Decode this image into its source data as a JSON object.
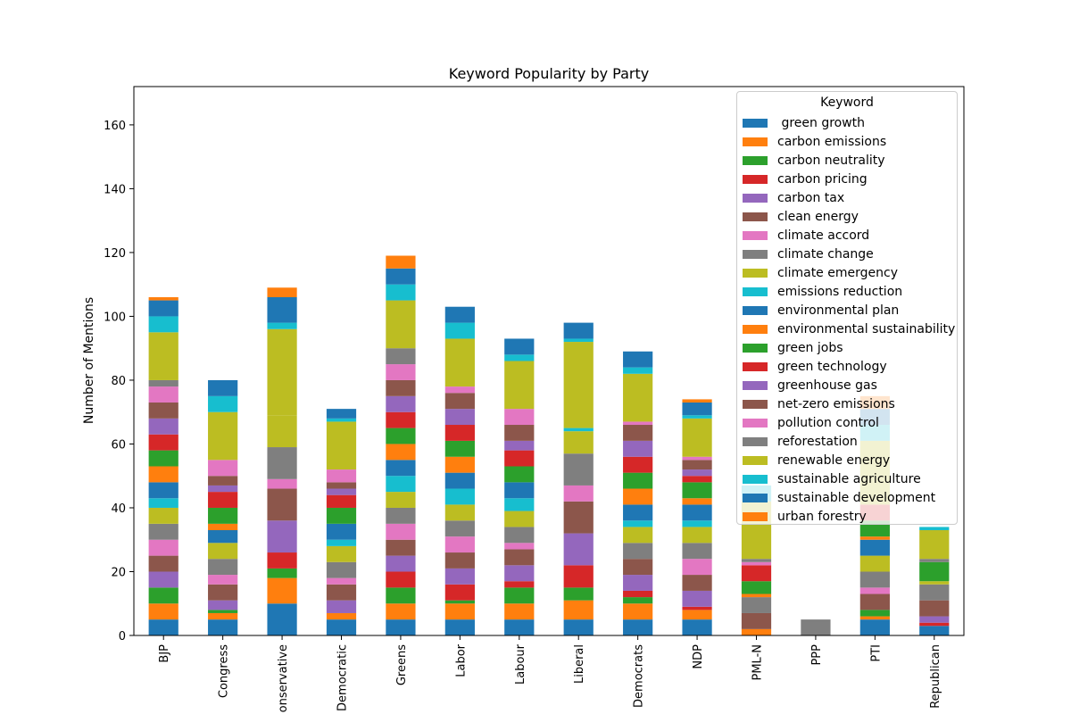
{
  "chart_data": {
    "type": "bar",
    "stacked": true,
    "title": "Keyword Popularity by Party",
    "xlabel": "",
    "ylabel": "Number of Mentions",
    "ylim": [
      0,
      172
    ],
    "yticks": [
      0,
      20,
      40,
      60,
      80,
      100,
      120,
      140,
      160
    ],
    "categories": [
      "BJP",
      "Congress",
      "Conservative",
      "Democratic",
      "Greens",
      "Labor",
      "Labour",
      "Liberal",
      "Liberal Democrats",
      "NDP",
      "PML-N",
      "PPP",
      "PTI",
      "Republican"
    ],
    "category_labels": [
      "BJP",
      "Congress",
      "onservative",
      "Democratic",
      "Greens",
      "Labor",
      "Labour",
      "Liberal",
      "Democrats",
      "NDP",
      "PML-N",
      "PPP",
      "PTI",
      "Republican"
    ],
    "legend_title": "Keyword",
    "legend_position": "upper right",
    "grid": false,
    "series": [
      {
        "name": " green growth",
        "color": "#1f77b4",
        "values": [
          5,
          5,
          10,
          5,
          5,
          5,
          5,
          5,
          5,
          5,
          0,
          0,
          5,
          3
        ]
      },
      {
        "name": "carbon emissions",
        "color": "#ff7f0e",
        "values": [
          5,
          2,
          8,
          2,
          5,
          5,
          5,
          6,
          5,
          3,
          2,
          0,
          1,
          0
        ]
      },
      {
        "name": "carbon neutrality",
        "color": "#2ca02c",
        "values": [
          5,
          1,
          3,
          0,
          5,
          1,
          5,
          4,
          2,
          0,
          0,
          0,
          2,
          0
        ]
      },
      {
        "name": "carbon pricing",
        "color": "#d62728",
        "values": [
          0,
          0,
          5,
          0,
          5,
          5,
          2,
          7,
          2,
          1,
          0,
          0,
          0,
          1
        ]
      },
      {
        "name": "carbon tax",
        "color": "#9467bd",
        "values": [
          5,
          3,
          10,
          4,
          5,
          5,
          5,
          10,
          5,
          5,
          0,
          0,
          0,
          2
        ]
      },
      {
        "name": "clean energy",
        "color": "#8c564b",
        "values": [
          5,
          5,
          10,
          5,
          5,
          5,
          5,
          10,
          5,
          5,
          5,
          0,
          5,
          5
        ]
      },
      {
        "name": "climate accord",
        "color": "#e377c2",
        "values": [
          5,
          3,
          3,
          2,
          5,
          5,
          2,
          5,
          0,
          5,
          0,
          0,
          2,
          0
        ]
      },
      {
        "name": "climate change",
        "color": "#7f7f7f",
        "values": [
          5,
          5,
          10,
          5,
          5,
          5,
          5,
          10,
          5,
          5,
          5,
          5,
          5,
          5
        ]
      },
      {
        "name": "climate emergency",
        "color": "#bcbd22",
        "values": [
          5,
          5,
          10,
          5,
          5,
          5,
          5,
          7,
          5,
          5,
          0,
          0,
          5,
          1
        ]
      },
      {
        "name": "emissions reduction",
        "color": "#17becf",
        "values": [
          3,
          0,
          0,
          2,
          5,
          5,
          4,
          1,
          2,
          2,
          0,
          0,
          0,
          0
        ]
      },
      {
        "name": "environmental plan",
        "color": "#1f77b4",
        "values": [
          5,
          4,
          0,
          5,
          5,
          5,
          5,
          0,
          5,
          5,
          0,
          0,
          5,
          0
        ]
      },
      {
        "name": "environmental sustainability",
        "color": "#ff7f0e",
        "values": [
          5,
          2,
          0,
          0,
          5,
          5,
          0,
          0,
          5,
          2,
          1,
          0,
          1,
          0
        ]
      },
      {
        "name": "green jobs",
        "color": "#2ca02c",
        "values": [
          5,
          5,
          0,
          5,
          5,
          5,
          5,
          0,
          5,
          5,
          4,
          0,
          5,
          6
        ]
      },
      {
        "name": "green technology",
        "color": "#d62728",
        "values": [
          5,
          5,
          0,
          4,
          5,
          5,
          5,
          0,
          5,
          2,
          5,
          0,
          5,
          0
        ]
      },
      {
        "name": "greenhouse gas",
        "color": "#9467bd",
        "values": [
          5,
          2,
          0,
          2,
          5,
          5,
          3,
          0,
          5,
          2,
          0,
          0,
          0,
          0
        ]
      },
      {
        "name": "net-zero emissions",
        "color": "#8c564b",
        "values": [
          5,
          3,
          0,
          2,
          5,
          5,
          5,
          0,
          5,
          3,
          0,
          0,
          0,
          0
        ]
      },
      {
        "name": "pollution control",
        "color": "#e377c2",
        "values": [
          5,
          5,
          0,
          4,
          5,
          2,
          5,
          0,
          1,
          1,
          1,
          0,
          0,
          0
        ]
      },
      {
        "name": "reforestation",
        "color": "#7f7f7f",
        "values": [
          2,
          0,
          0,
          0,
          5,
          0,
          0,
          0,
          0,
          0,
          1,
          0,
          0,
          1
        ]
      },
      {
        "name": "renewable energy",
        "color": "#bcbd22",
        "values": [
          15,
          15,
          27,
          15,
          15,
          15,
          15,
          27,
          15,
          12,
          18,
          0,
          20,
          9
        ]
      },
      {
        "name": "sustainable agriculture",
        "color": "#17becf",
        "values": [
          5,
          5,
          2,
          1,
          5,
          5,
          2,
          1,
          2,
          1,
          5,
          0,
          5,
          1
        ]
      },
      {
        "name": "sustainable development",
        "color": "#1f77b4",
        "values": [
          5,
          5,
          8,
          3,
          5,
          5,
          5,
          5,
          5,
          4,
          0,
          0,
          5,
          0
        ]
      },
      {
        "name": "urban forestry",
        "color": "#ff7f0e",
        "values": [
          1,
          0,
          3,
          0,
          4,
          0,
          0,
          0,
          0,
          1,
          0,
          0,
          4,
          0
        ]
      }
    ]
  }
}
